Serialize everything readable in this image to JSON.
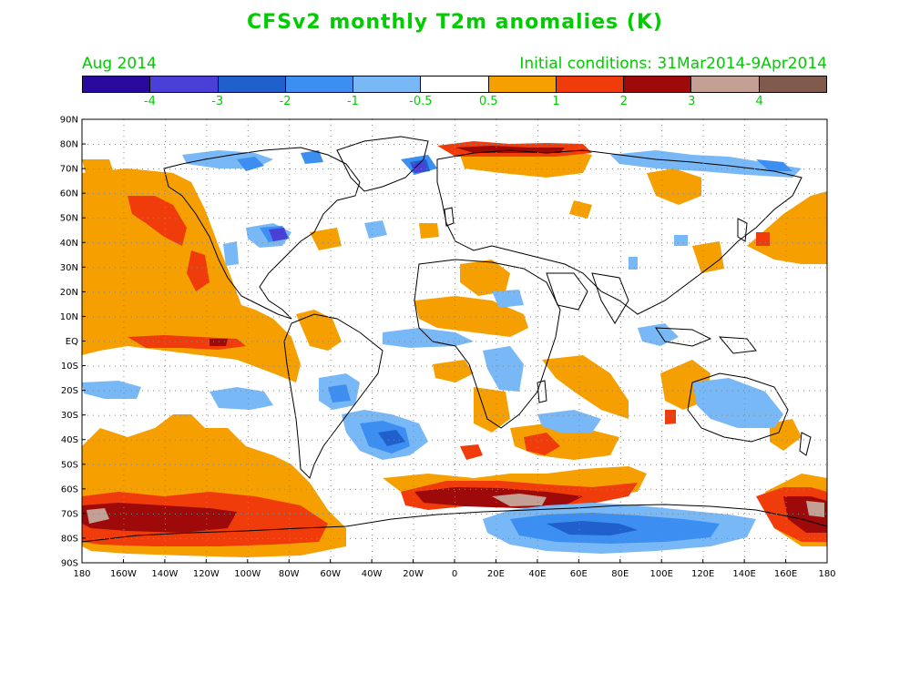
{
  "title": "CFSv2 monthly T2m anomalies (K)",
  "subtitle_left": "Aug 2014",
  "subtitle_right": "Initial conditions: 31Mar2014-9Apr2014",
  "text_color": "#00cc00",
  "colorbar": {
    "colors": [
      "#2a0a9e",
      "#4a3fd6",
      "#2060cc",
      "#3c8ef0",
      "#78b8f6",
      "#ffffff",
      "#f5a000",
      "#f03c0a",
      "#9e0a0a",
      "#c4a094",
      "#805a4c"
    ],
    "labels": [
      "-4",
      "-3",
      "-2",
      "-1",
      "-0.5",
      "0.5",
      "1",
      "2",
      "3",
      "4"
    ]
  },
  "map": {
    "lat_labels": [
      "90N",
      "80N",
      "70N",
      "60N",
      "50N",
      "40N",
      "30N",
      "20N",
      "10N",
      "EQ",
      "10S",
      "20S",
      "30S",
      "40S",
      "50S",
      "60S",
      "70S",
      "80S",
      "90S"
    ],
    "lon_labels": [
      "180",
      "160W",
      "140W",
      "120W",
      "100W",
      "80W",
      "60W",
      "40W",
      "20W",
      "0",
      "20E",
      "40E",
      "60E",
      "80E",
      "100E",
      "120E",
      "140E",
      "160E",
      "180"
    ]
  }
}
